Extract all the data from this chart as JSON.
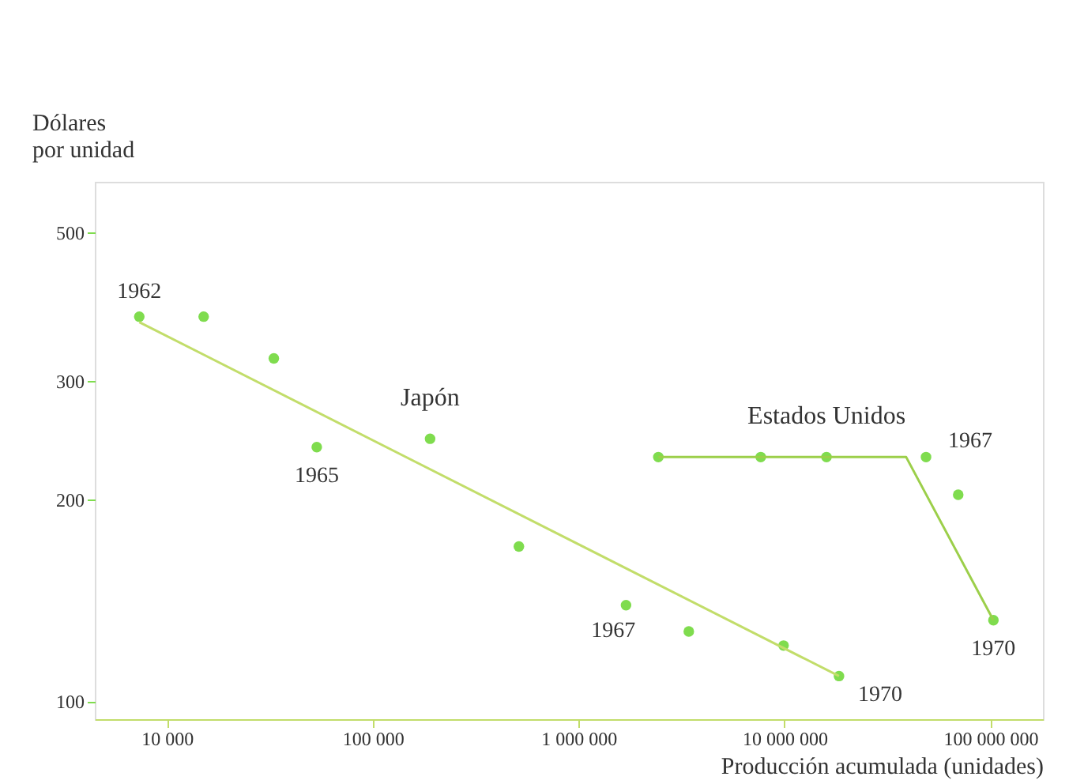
{
  "chart_data": {
    "type": "scatter",
    "ylabel": "Dólares\npor unidad",
    "xlabel": "Producción acumulada (unidades)",
    "log": "xy",
    "grid": false,
    "marker": "circle",
    "xlim": [
      4470,
      180000000
    ],
    "ylim": [
      94,
      594
    ],
    "xticks": [
      {
        "value": 10000,
        "label": "10 000"
      },
      {
        "value": 100000,
        "label": "100 000"
      },
      {
        "value": 1000000,
        "label": "1 000 000"
      },
      {
        "value": 10000000,
        "label": "10 000 000"
      },
      {
        "value": 100000000,
        "label": "100 000 000"
      }
    ],
    "yticks": [
      100,
      200,
      300,
      500
    ],
    "series": [
      {
        "name": "Japón",
        "color": "#7fdc4e",
        "x": [
          7350,
          15100,
          33100,
          53500,
          190000,
          513000,
          1700000,
          3430000,
          9900000,
          18400000
        ],
        "values": [
          374,
          374,
          324,
          239,
          246,
          170,
          139,
          127,
          121,
          109
        ]
      },
      {
        "type": "line",
        "marker": "none",
        "color": "#c2dd6a",
        "x": [
          7350,
          18400000
        ],
        "values": [
          367,
          109
        ]
      },
      {
        "name": "Estados Unidos",
        "color": "#7fdc4e",
        "x": [
          2440000,
          7670000,
          16000000,
          48700000,
          69800000,
          103500000
        ],
        "values": [
          231,
          231,
          231,
          231,
          203,
          132
        ]
      },
      {
        "type": "line",
        "marker": "none",
        "color": "#9ccf4a",
        "x": [
          2440000,
          39000000,
          103500000
        ],
        "values": [
          231,
          231,
          132
        ]
      }
    ],
    "annotations": [
      {
        "text": "1962",
        "x": 7350,
        "y": 374
      },
      {
        "text": "1965",
        "x": 53500,
        "y": 239
      },
      {
        "text": "1967",
        "x": 1700000,
        "y": 139
      },
      {
        "text": "1970",
        "x": 18400000,
        "y": 109
      },
      {
        "text": "1967",
        "x": 48700000,
        "y": 231
      },
      {
        "text": "1970",
        "x": 103500000,
        "y": 132
      }
    ]
  }
}
